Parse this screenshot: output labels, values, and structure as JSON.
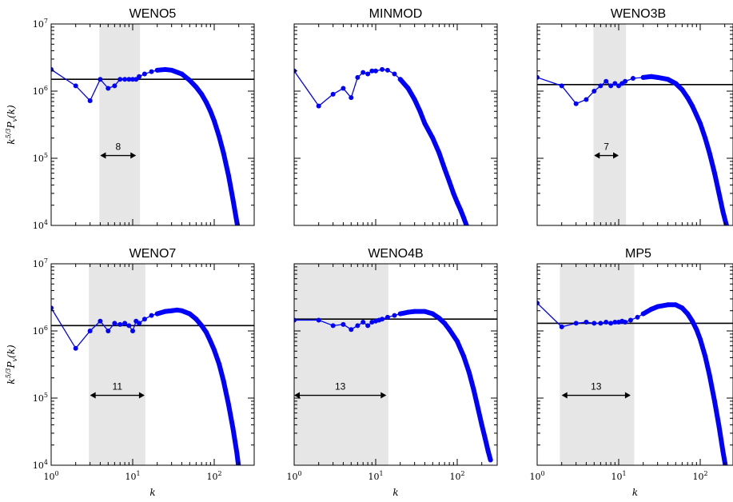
{
  "chart_data": [
    {
      "type": "line",
      "title": "WENO5",
      "xlabel": "",
      "ylabel": "k^{5/3} P_v(k)",
      "xscale": "log",
      "yscale": "log",
      "xlim": [
        1,
        256
      ],
      "ylim": [
        10000,
        10000000
      ],
      "x_ticks": [],
      "y_ticks": [
        "10^4",
        "10^5",
        "10^6",
        "10^7"
      ],
      "reference_line": 1500000,
      "shaded_band": [
        3.9,
        12.3
      ],
      "annotation": {
        "text": "8",
        "x_range": [
          4,
          11
        ],
        "y": 110000
      },
      "series": [
        {
          "color": "#0000ff",
          "marker": "circle",
          "points": [
            [
              1,
              2100000
            ],
            [
              2,
              1200000
            ],
            [
              3,
              720000
            ],
            [
              4,
              1500000
            ],
            [
              5,
              1100000
            ],
            [
              6,
              1200000
            ],
            [
              7,
              1500000
            ],
            [
              8,
              1500000
            ],
            [
              9,
              1500000
            ],
            [
              10,
              1500000
            ],
            [
              11,
              1500000
            ],
            [
              12,
              1650000
            ],
            [
              14,
              1800000
            ],
            [
              17,
              1950000
            ],
            [
              20,
              2050000
            ],
            [
              25,
              2100000
            ],
            [
              30,
              2050000
            ],
            [
              40,
              1800000
            ],
            [
              50,
              1450000
            ],
            [
              60,
              1150000
            ],
            [
              70,
              900000
            ],
            [
              80,
              680000
            ],
            [
              90,
              500000
            ],
            [
              100,
              360000
            ],
            [
              115,
              210000
            ],
            [
              130,
              120000
            ],
            [
              150,
              55000
            ],
            [
              170,
              24000
            ],
            [
              190,
              11000
            ],
            [
              200,
              8000
            ]
          ]
        }
      ]
    },
    {
      "type": "line",
      "title": "MINMOD",
      "xlabel": "",
      "ylabel": "",
      "xscale": "log",
      "yscale": "log",
      "xlim": [
        1,
        256
      ],
      "ylim": [
        10000,
        10000000
      ],
      "x_ticks": [],
      "y_ticks": [],
      "reference_line": null,
      "shaded_band": null,
      "annotation": null,
      "series": [
        {
          "color": "#0000ff",
          "marker": "circle",
          "points": [
            [
              1,
              2000000
            ],
            [
              2,
              600000
            ],
            [
              3,
              900000
            ],
            [
              4,
              1100000
            ],
            [
              5,
              800000
            ],
            [
              6,
              1600000
            ],
            [
              7,
              1900000
            ],
            [
              8,
              1800000
            ],
            [
              9,
              2000000
            ],
            [
              10,
              2000000
            ],
            [
              12,
              2100000
            ],
            [
              14,
              2050000
            ],
            [
              17,
              1800000
            ],
            [
              20,
              1500000
            ],
            [
              25,
              1100000
            ],
            [
              30,
              750000
            ],
            [
              35,
              500000
            ],
            [
              40,
              330000
            ],
            [
              50,
              200000
            ],
            [
              60,
              120000
            ],
            [
              70,
              70000
            ],
            [
              80,
              45000
            ],
            [
              90,
              30000
            ],
            [
              100,
              22000
            ],
            [
              110,
              17000
            ],
            [
              120,
              13000
            ],
            [
              130,
              10000
            ],
            [
              140,
              8000
            ]
          ]
        }
      ]
    },
    {
      "type": "line",
      "title": "WENO3B",
      "xlabel": "",
      "ylabel": "",
      "xscale": "log",
      "yscale": "log",
      "xlim": [
        1,
        256
      ],
      "ylim": [
        10000,
        10000000
      ],
      "x_ticks": [],
      "y_ticks": [],
      "reference_line": 1250000,
      "shaded_band": [
        4.9,
        12.3
      ],
      "annotation": {
        "text": "7",
        "x_range": [
          5,
          10
        ],
        "y": 110000
      },
      "series": [
        {
          "color": "#0000ff",
          "marker": "circle",
          "points": [
            [
              1,
              1600000
            ],
            [
              2,
              1200000
            ],
            [
              3,
              650000
            ],
            [
              4,
              750000
            ],
            [
              5,
              1000000
            ],
            [
              6,
              1200000
            ],
            [
              7,
              1400000
            ],
            [
              8,
              1200000
            ],
            [
              9,
              1300000
            ],
            [
              10,
              1200000
            ],
            [
              11,
              1300000
            ],
            [
              12,
              1400000
            ],
            [
              15,
              1550000
            ],
            [
              20,
              1600000
            ],
            [
              25,
              1650000
            ],
            [
              30,
              1600000
            ],
            [
              40,
              1500000
            ],
            [
              50,
              1300000
            ],
            [
              60,
              1050000
            ],
            [
              70,
              800000
            ],
            [
              80,
              600000
            ],
            [
              90,
              440000
            ],
            [
              100,
              330000
            ],
            [
              115,
              200000
            ],
            [
              130,
              120000
            ],
            [
              150,
              60000
            ],
            [
              170,
              30000
            ],
            [
              190,
              16000
            ],
            [
              210,
              10000
            ]
          ]
        }
      ]
    },
    {
      "type": "line",
      "title": "WENO7",
      "xlabel": "k",
      "ylabel": "k^{5/3} P_v(k)",
      "xscale": "log",
      "yscale": "log",
      "xlim": [
        1,
        256
      ],
      "ylim": [
        10000,
        10000000
      ],
      "x_ticks": [
        "10^0",
        "10^1",
        "10^2"
      ],
      "y_ticks": [
        "10^4",
        "10^5",
        "10^6",
        "10^7"
      ],
      "reference_line": 1200000,
      "shaded_band": [
        2.9,
        14.3
      ],
      "annotation": {
        "text": "11",
        "x_range": [
          3,
          14
        ],
        "y": 110000
      },
      "series": [
        {
          "color": "#0000ff",
          "marker": "circle",
          "points": [
            [
              1,
              2200000
            ],
            [
              2,
              550000
            ],
            [
              3,
              1000000
            ],
            [
              4,
              1400000
            ],
            [
              5,
              1000000
            ],
            [
              6,
              1300000
            ],
            [
              7,
              1250000
            ],
            [
              8,
              1300000
            ],
            [
              9,
              1200000
            ],
            [
              10,
              1000000
            ],
            [
              11,
              1400000
            ],
            [
              12,
              1300000
            ],
            [
              14,
              1500000
            ],
            [
              17,
              1700000
            ],
            [
              20,
              1800000
            ],
            [
              25,
              1950000
            ],
            [
              30,
              2000000
            ],
            [
              35,
              2050000
            ],
            [
              40,
              2000000
            ],
            [
              50,
              1800000
            ],
            [
              60,
              1500000
            ],
            [
              70,
              1200000
            ],
            [
              80,
              950000
            ],
            [
              90,
              700000
            ],
            [
              100,
              520000
            ],
            [
              115,
              320000
            ],
            [
              130,
              180000
            ],
            [
              150,
              80000
            ],
            [
              170,
              35000
            ],
            [
              190,
              15000
            ],
            [
              200,
              9000
            ]
          ]
        }
      ]
    },
    {
      "type": "line",
      "title": "WENO4B",
      "xlabel": "k",
      "ylabel": "",
      "xscale": "log",
      "yscale": "log",
      "xlim": [
        1,
        256
      ],
      "ylim": [
        10000,
        10000000
      ],
      "x_ticks": [
        "10^0",
        "10^1",
        "10^2"
      ],
      "y_ticks": [],
      "reference_line": 1500000,
      "shaded_band": [
        1,
        14.3
      ],
      "annotation": {
        "text": "13",
        "x_range": [
          1,
          13.5
        ],
        "y": 110000
      },
      "series": [
        {
          "color": "#0000ff",
          "marker": "circle",
          "points": [
            [
              1,
              1450000
            ],
            [
              2,
              1450000
            ],
            [
              3,
              1200000
            ],
            [
              4,
              1250000
            ],
            [
              5,
              1050000
            ],
            [
              6,
              1200000
            ],
            [
              7,
              1350000
            ],
            [
              8,
              1200000
            ],
            [
              9,
              1350000
            ],
            [
              10,
              1400000
            ],
            [
              11,
              1450000
            ],
            [
              12,
              1500000
            ],
            [
              14,
              1600000
            ],
            [
              17,
              1700000
            ],
            [
              20,
              1800000
            ],
            [
              25,
              1900000
            ],
            [
              30,
              1950000
            ],
            [
              40,
              1950000
            ],
            [
              50,
              1800000
            ],
            [
              60,
              1550000
            ],
            [
              70,
              1300000
            ],
            [
              80,
              1050000
            ],
            [
              100,
              700000
            ],
            [
              120,
              420000
            ],
            [
              140,
              240000
            ],
            [
              160,
              130000
            ],
            [
              180,
              70000
            ],
            [
              200,
              40000
            ],
            [
              220,
              25000
            ],
            [
              240,
              16000
            ],
            [
              256,
              12000
            ]
          ]
        }
      ]
    },
    {
      "type": "line",
      "title": "MP5",
      "xlabel": "k",
      "ylabel": "",
      "xscale": "log",
      "yscale": "log",
      "xlim": [
        1,
        256
      ],
      "ylim": [
        10000,
        10000000
      ],
      "x_ticks": [
        "10^0",
        "10^1",
        "10^2"
      ],
      "y_ticks": [],
      "reference_line": 1300000,
      "shaded_band": [
        1.9,
        15.5
      ],
      "annotation": {
        "text": "13",
        "x_range": [
          2,
          14
        ],
        "y": 110000
      },
      "series": [
        {
          "color": "#0000ff",
          "marker": "circle",
          "points": [
            [
              1,
              2600000
            ],
            [
              2,
              1150000
            ],
            [
              3,
              1300000
            ],
            [
              4,
              1350000
            ],
            [
              5,
              1300000
            ],
            [
              6,
              1300000
            ],
            [
              7,
              1350000
            ],
            [
              8,
              1300000
            ],
            [
              9,
              1350000
            ],
            [
              10,
              1350000
            ],
            [
              11,
              1400000
            ],
            [
              12,
              1350000
            ],
            [
              14,
              1450000
            ],
            [
              17,
              1600000
            ],
            [
              20,
              1800000
            ],
            [
              25,
              2100000
            ],
            [
              30,
              2300000
            ],
            [
              40,
              2450000
            ],
            [
              50,
              2450000
            ],
            [
              60,
              2200000
            ],
            [
              70,
              1800000
            ],
            [
              80,
              1400000
            ],
            [
              90,
              1050000
            ],
            [
              100,
              750000
            ],
            [
              115,
              420000
            ],
            [
              130,
              220000
            ],
            [
              150,
              90000
            ],
            [
              170,
              38000
            ],
            [
              190,
              16000
            ],
            [
              210,
              8000
            ]
          ]
        }
      ]
    }
  ]
}
